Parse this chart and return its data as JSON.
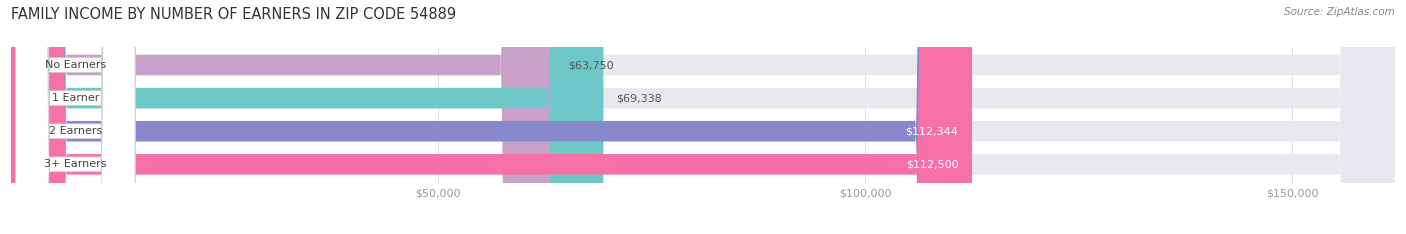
{
  "title": "FAMILY INCOME BY NUMBER OF EARNERS IN ZIP CODE 54889",
  "source": "Source: ZipAtlas.com",
  "categories": [
    "No Earners",
    "1 Earner",
    "2 Earners",
    "3+ Earners"
  ],
  "values": [
    63750,
    69338,
    112344,
    112500
  ],
  "labels": [
    "$63,750",
    "$69,338",
    "$112,344",
    "$112,500"
  ],
  "bar_colors": [
    "#c8a0c8",
    "#6ec8c8",
    "#8888cc",
    "#f870a8"
  ],
  "label_colors": [
    "#555555",
    "#555555",
    "#ffffff",
    "#ffffff"
  ],
  "bar_bg_color": "#e8e8f0",
  "xlim": [
    0,
    162000
  ],
  "xticks": [
    50000,
    100000,
    150000
  ],
  "xtick_labels": [
    "$50,000",
    "$100,000",
    "$150,000"
  ],
  "title_fontsize": 10.5,
  "category_color": "#444444",
  "bar_height": 0.62,
  "fig_bg": "#ffffff",
  "bar_gap": 0.15
}
